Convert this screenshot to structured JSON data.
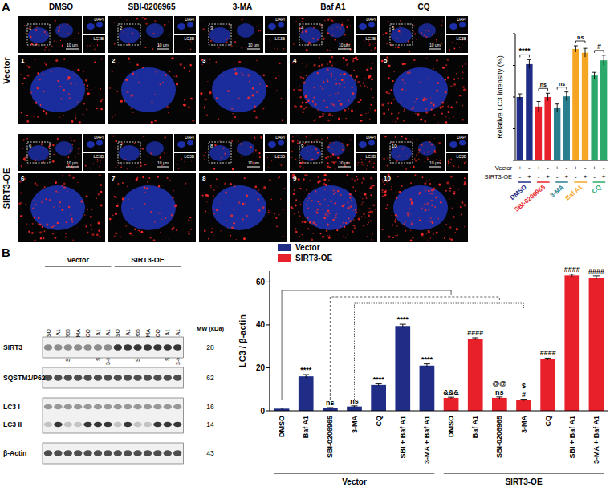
{
  "panel_a": {
    "label": "A",
    "columns": [
      "DMSO",
      "SBI-0206965",
      "3-MA",
      "Baf A1",
      "CQ"
    ],
    "rows": [
      "Vector",
      "SIRT3-OE"
    ],
    "insets": [
      "DAPI",
      "LC3B"
    ],
    "scale_bar": "10 μm",
    "zoom_labels": [
      "1",
      "2",
      "3",
      "4",
      "5",
      "6",
      "7",
      "8",
      "9",
      "10"
    ]
  },
  "panel_b": {
    "label": "B"
  },
  "blot": {
    "lanes": [
      "DMSO",
      "Baf A1",
      "SBI-0206965",
      "3-MA",
      "CQ",
      "SBI + Baf A1",
      "3-MA + Baf A1",
      "DMSO",
      "Baf A1",
      "SBI-0206965",
      "3-MA",
      "CQ",
      "SBI + Baf A1",
      "3-MA + Baf A1"
    ],
    "group_labels": [
      "Vector",
      "SIRT3-OE"
    ],
    "mw_header": "MW (kDa)",
    "rows": [
      {
        "labels": [
          "SIRT3"
        ],
        "mw": [
          "28"
        ]
      },
      {
        "labels": [
          "SQSTM1/P62"
        ],
        "mw": [
          "62"
        ]
      },
      {
        "labels": [
          "LC3 I",
          "LC3 II"
        ],
        "mw": [
          "16",
          "14"
        ]
      },
      {
        "labels": [
          "β-Actin"
        ],
        "mw": [
          "43"
        ]
      }
    ]
  },
  "chart_data": [
    {
      "type": "bar",
      "y_label": "Relative LC3 intensity (%)",
      "categories": [
        "DMSO",
        "SBI-0206965",
        "3-MA",
        "Baf A1",
        "CQ"
      ],
      "ylim": [
        0,
        200
      ],
      "yticks": [
        0,
        50,
        100,
        150,
        200
      ],
      "tick_labels": "x",
      "grid": false,
      "significance": [
        "****",
        "ns",
        "ns",
        "ns",
        "#"
      ],
      "series": [
        {
          "name": "Vector",
          "colors": [
            "#1f2d86",
            "#e8202a",
            "#2a7f8f",
            "#f5a623",
            "#2ca86a"
          ],
          "values": [
            100,
            85,
            83,
            176,
            134
          ],
          "errors": [
            5,
            8,
            6,
            5,
            5
          ],
          "signs": [
            "+",
            "-",
            "+",
            "-",
            "+",
            "-",
            "+",
            "-",
            "+",
            "-"
          ]
        },
        {
          "name": "SIRT3-OE",
          "colors": [
            "#1f2d86",
            "#e8202a",
            "#2a7f8f",
            "#f5a623",
            "#2ca86a"
          ],
          "values": [
            152,
            100,
            101,
            170,
            158
          ],
          "errors": [
            7,
            6,
            7,
            7,
            8
          ],
          "signs": [
            "-",
            "+",
            "-",
            "+",
            "-",
            "+",
            "-",
            "+",
            "-",
            "+"
          ]
        }
      ]
    },
    {
      "type": "bar",
      "y_label": "LC3 / β-actin",
      "categories": [
        "DMSO",
        "Baf A1",
        "SBI-0206965",
        "3-MA",
        "CQ",
        "SBI + Baf A1",
        "3-MA + Baf A1",
        "DMSO",
        "Baf A1",
        "SBI-0206965",
        "3-MA",
        "CQ",
        "SBI + Baf A1",
        "3-MA + Baf A1"
      ],
      "ylim": [
        0,
        65
      ],
      "yticks": [
        0,
        20,
        40,
        60
      ],
      "legend": "top-left",
      "grid": false,
      "series": [
        {
          "name": "Vector",
          "color": "#1f2d86",
          "values": [
            1,
            16,
            1.2,
            2,
            12,
            39.5,
            21,
            null,
            null,
            null,
            null,
            null,
            null,
            null
          ],
          "errors": [
            0.3,
            0.8,
            0.3,
            0.3,
            0.5,
            0.8,
            0.8,
            null,
            null,
            null,
            null,
            null,
            null,
            null
          ],
          "significance": [
            null,
            "****",
            "ns",
            "ns",
            "****",
            "****",
            "****",
            null,
            null,
            null,
            null,
            null,
            null,
            null
          ],
          "significance_2": [
            null,
            null,
            null,
            null,
            null,
            null,
            null,
            null,
            null,
            null,
            null,
            null,
            null,
            null
          ]
        },
        {
          "name": "SIRT3-OE",
          "color": "#e8202a",
          "values": [
            null,
            null,
            null,
            null,
            null,
            null,
            null,
            6,
            33.5,
            6,
            5,
            24,
            63,
            62
          ],
          "errors": [
            null,
            null,
            null,
            null,
            null,
            null,
            null,
            0.3,
            0.5,
            0.4,
            0.4,
            0.5,
            0.6,
            0.8
          ],
          "significance": [
            null,
            null,
            null,
            null,
            null,
            null,
            null,
            "&&&",
            "####",
            "ns",
            "#",
            "####",
            "####",
            "####"
          ],
          "significance_2": [
            null,
            null,
            null,
            null,
            null,
            null,
            null,
            null,
            null,
            "@@",
            "$",
            null,
            null,
            null
          ]
        }
      ]
    }
  ]
}
